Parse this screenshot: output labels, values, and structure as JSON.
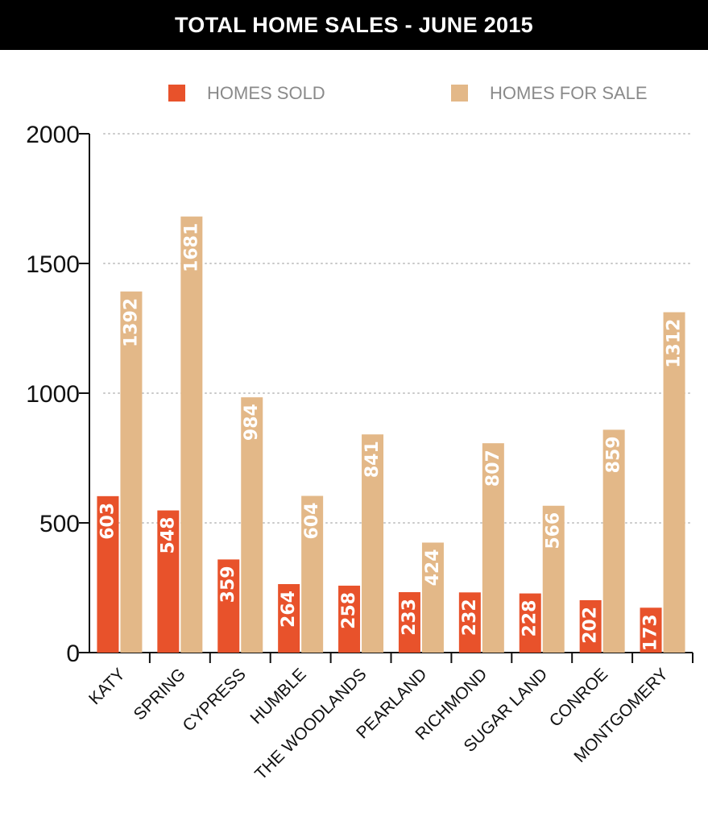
{
  "header": {
    "title": "TOTAL HOME SALES - JUNE 2015"
  },
  "chart_data": {
    "type": "bar",
    "title": "TOTAL HOME SALES - JUNE 2015",
    "categories": [
      "KATY",
      "SPRING",
      "CYPRESS",
      "HUMBLE",
      "THE WOODLANDS",
      "PEARLAND",
      "RICHMOND",
      "SUGAR LAND",
      "CONROE",
      "MONTGOMERY"
    ],
    "series": [
      {
        "name": "HOMES SOLD",
        "color": "#e8522b",
        "values": [
          603,
          548,
          359,
          264,
          258,
          233,
          232,
          228,
          202,
          173
        ]
      },
      {
        "name": "HOMES FOR SALE",
        "color": "#e3b888",
        "values": [
          1392,
          1681,
          984,
          604,
          841,
          424,
          807,
          566,
          859,
          1312
        ]
      }
    ],
    "yticks": [
      0,
      500,
      1000,
      1500,
      2000
    ],
    "ylim": [
      0,
      2000
    ],
    "xlabel": "",
    "ylabel": "",
    "grid": true,
    "legend_position": "top"
  }
}
